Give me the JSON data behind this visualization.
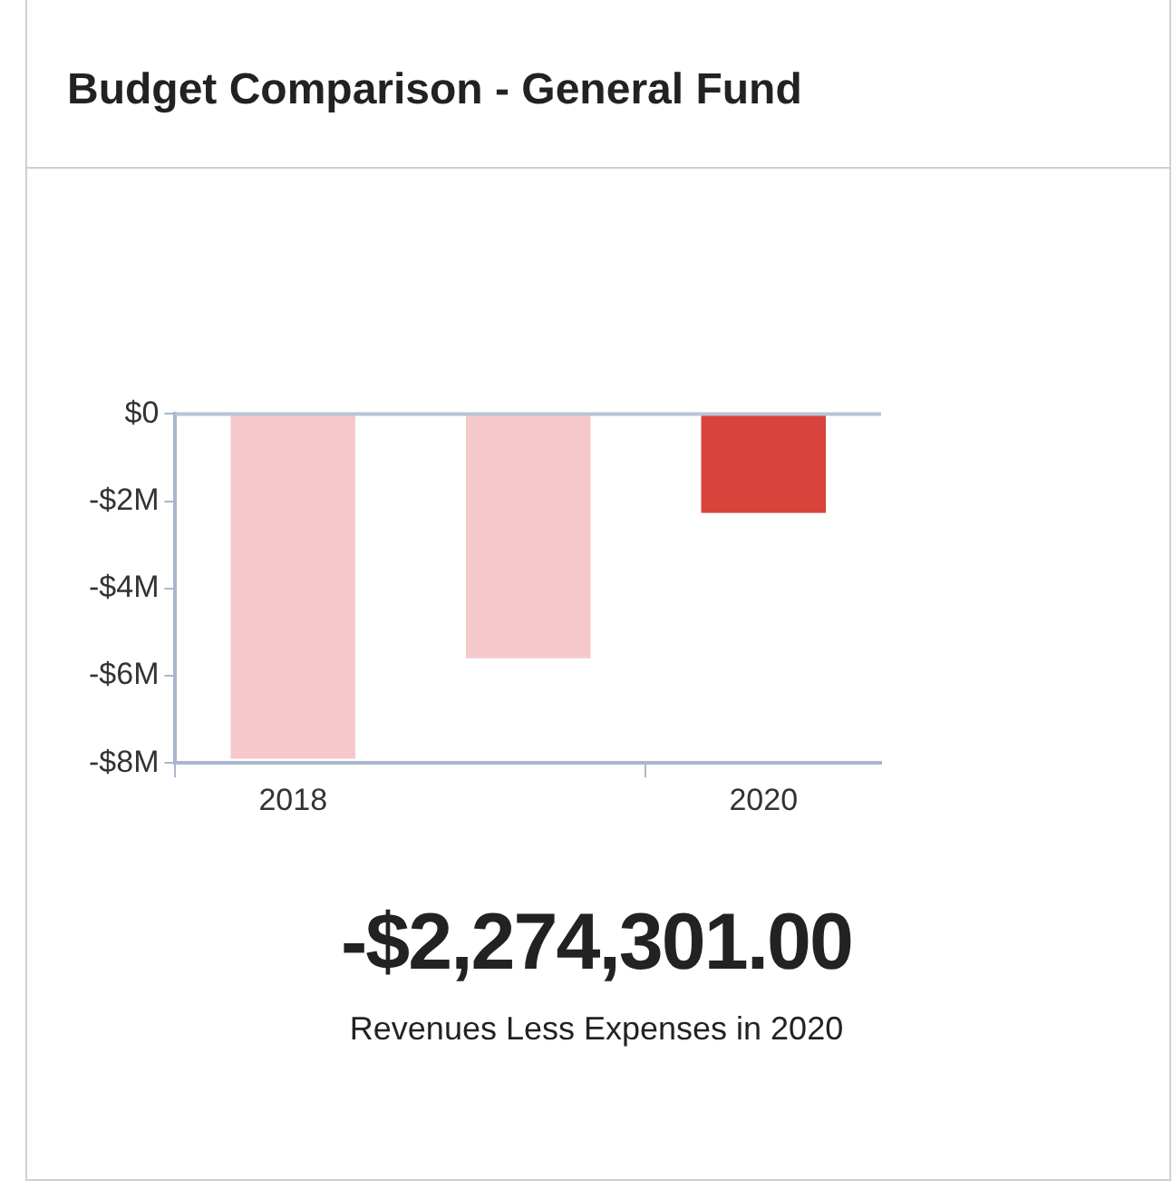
{
  "chart_data": {
    "type": "bar",
    "title": "Budget Comparison - General Fund",
    "categories": [
      "2018",
      null,
      "2020"
    ],
    "values": [
      -7.9,
      -5.6,
      -2.27
    ],
    "colors": [
      "#f5c9cc",
      "#f5c9cc",
      "#d8443c"
    ],
    "ylim": [
      -8,
      0
    ],
    "yticks": [
      {
        "value": 0,
        "label": "$0"
      },
      {
        "value": -2,
        "label": "-$2M"
      },
      {
        "value": -4,
        "label": "-$4M"
      },
      {
        "value": -6,
        "label": "-$6M"
      },
      {
        "value": -8,
        "label": "-$8M"
      }
    ],
    "ref_lines": [
      {
        "axis": "y",
        "value": 0,
        "label": null,
        "color": "#b8c4d6"
      }
    ],
    "annotations": [
      "-$2,274,301.00",
      "Revenues Less Expenses in 2020"
    ]
  }
}
